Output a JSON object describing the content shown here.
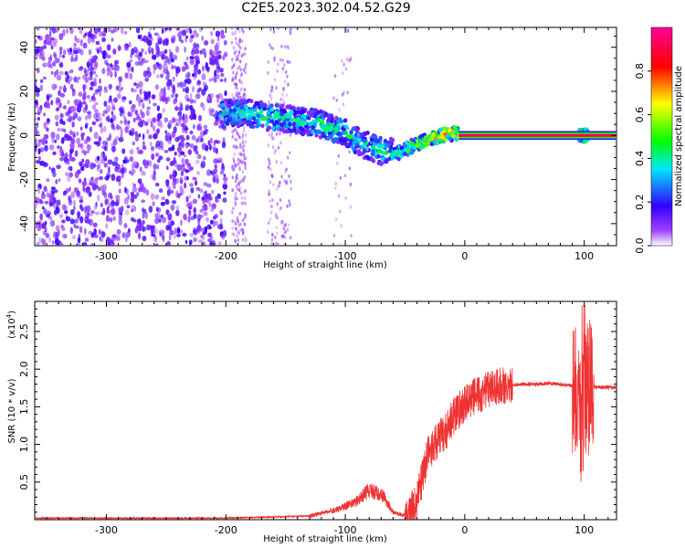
{
  "title": "C2E5.2023.302.04.52.G29",
  "chart_data": [
    {
      "type": "heatmap",
      "name": "spectrogram",
      "xlabel": "Height of straight line (km)",
      "ylabel": "Frequency (Hz)",
      "xlim": [
        -360,
        127
      ],
      "ylim": [
        -50,
        49
      ],
      "xticks": [
        -300,
        -200,
        -100,
        0,
        100
      ],
      "yticks": [
        -40,
        -20,
        0,
        20,
        40
      ],
      "grid": false,
      "colorbar": {
        "label": "Normalized spectral amplitude",
        "range": [
          0,
          1
        ],
        "ticks": [
          0.0,
          0.2,
          0.4,
          0.6,
          0.8
        ],
        "colors": [
          "#ffffff",
          "#8a2be2",
          "#3300ff",
          "#00e5ff",
          "#00ff00",
          "#ffff00",
          "#ff0000",
          "#ff00aa"
        ]
      },
      "signal_track": [
        {
          "x": -205,
          "y": 10,
          "amp": 0.45
        },
        {
          "x": -180,
          "y": 10,
          "amp": 0.45
        },
        {
          "x": -160,
          "y": 8,
          "amp": 0.5
        },
        {
          "x": -140,
          "y": 7,
          "amp": 0.45
        },
        {
          "x": -120,
          "y": 5,
          "amp": 0.5
        },
        {
          "x": -100,
          "y": 1,
          "amp": 0.45
        },
        {
          "x": -85,
          "y": -4,
          "amp": 0.45
        },
        {
          "x": -70,
          "y": -7,
          "amp": 0.45
        },
        {
          "x": -55,
          "y": -8,
          "amp": 0.5
        },
        {
          "x": -45,
          "y": -5,
          "amp": 0.6
        },
        {
          "x": -35,
          "y": -3,
          "amp": 0.7
        },
        {
          "x": -20,
          "y": 0,
          "amp": 0.75
        },
        {
          "x": -5,
          "y": 1,
          "amp": 0.8
        },
        {
          "x": 0,
          "y": 0,
          "amp": 0.9
        },
        {
          "x": 127,
          "y": 0,
          "amp": 0.9
        }
      ],
      "carrier_band": {
        "x_start": -5,
        "x_end": 127,
        "y": 0,
        "amp": 0.9
      }
    },
    {
      "type": "line",
      "name": "snr",
      "xlabel": "Height of straight line (km)",
      "ylabel": "SNR (10 * v/v)",
      "yscale_label": "(x10",
      "yscale_exp": "4",
      "xlim": [
        -360,
        127
      ],
      "ylim": [
        0,
        2.9
      ],
      "xticks": [
        -300,
        -200,
        -100,
        0,
        100
      ],
      "yticks": [
        0.5,
        1.0,
        1.5,
        2.0,
        2.5
      ],
      "color": "#ee3333",
      "grid": false,
      "x": [
        -360,
        -200,
        -130,
        -110,
        -100,
        -90,
        -80,
        -70,
        -60,
        -50,
        -40,
        -35,
        -30,
        -25,
        -20,
        -15,
        -10,
        -5,
        0,
        10,
        20,
        30,
        40,
        50,
        60,
        70,
        80,
        85,
        90,
        95,
        98,
        100,
        103,
        105,
        110,
        120,
        127
      ],
      "y": [
        0.02,
        0.02,
        0.05,
        0.12,
        0.18,
        0.25,
        0.4,
        0.35,
        0.1,
        0.05,
        0.25,
        0.6,
        0.9,
        1.0,
        1.1,
        1.2,
        1.35,
        1.45,
        1.55,
        1.65,
        1.72,
        1.78,
        1.79,
        1.8,
        1.8,
        1.81,
        1.8,
        1.79,
        1.78,
        1.8,
        1.0,
        1.8,
        1.7,
        1.78,
        1.76,
        1.76,
        1.75
      ]
    }
  ]
}
